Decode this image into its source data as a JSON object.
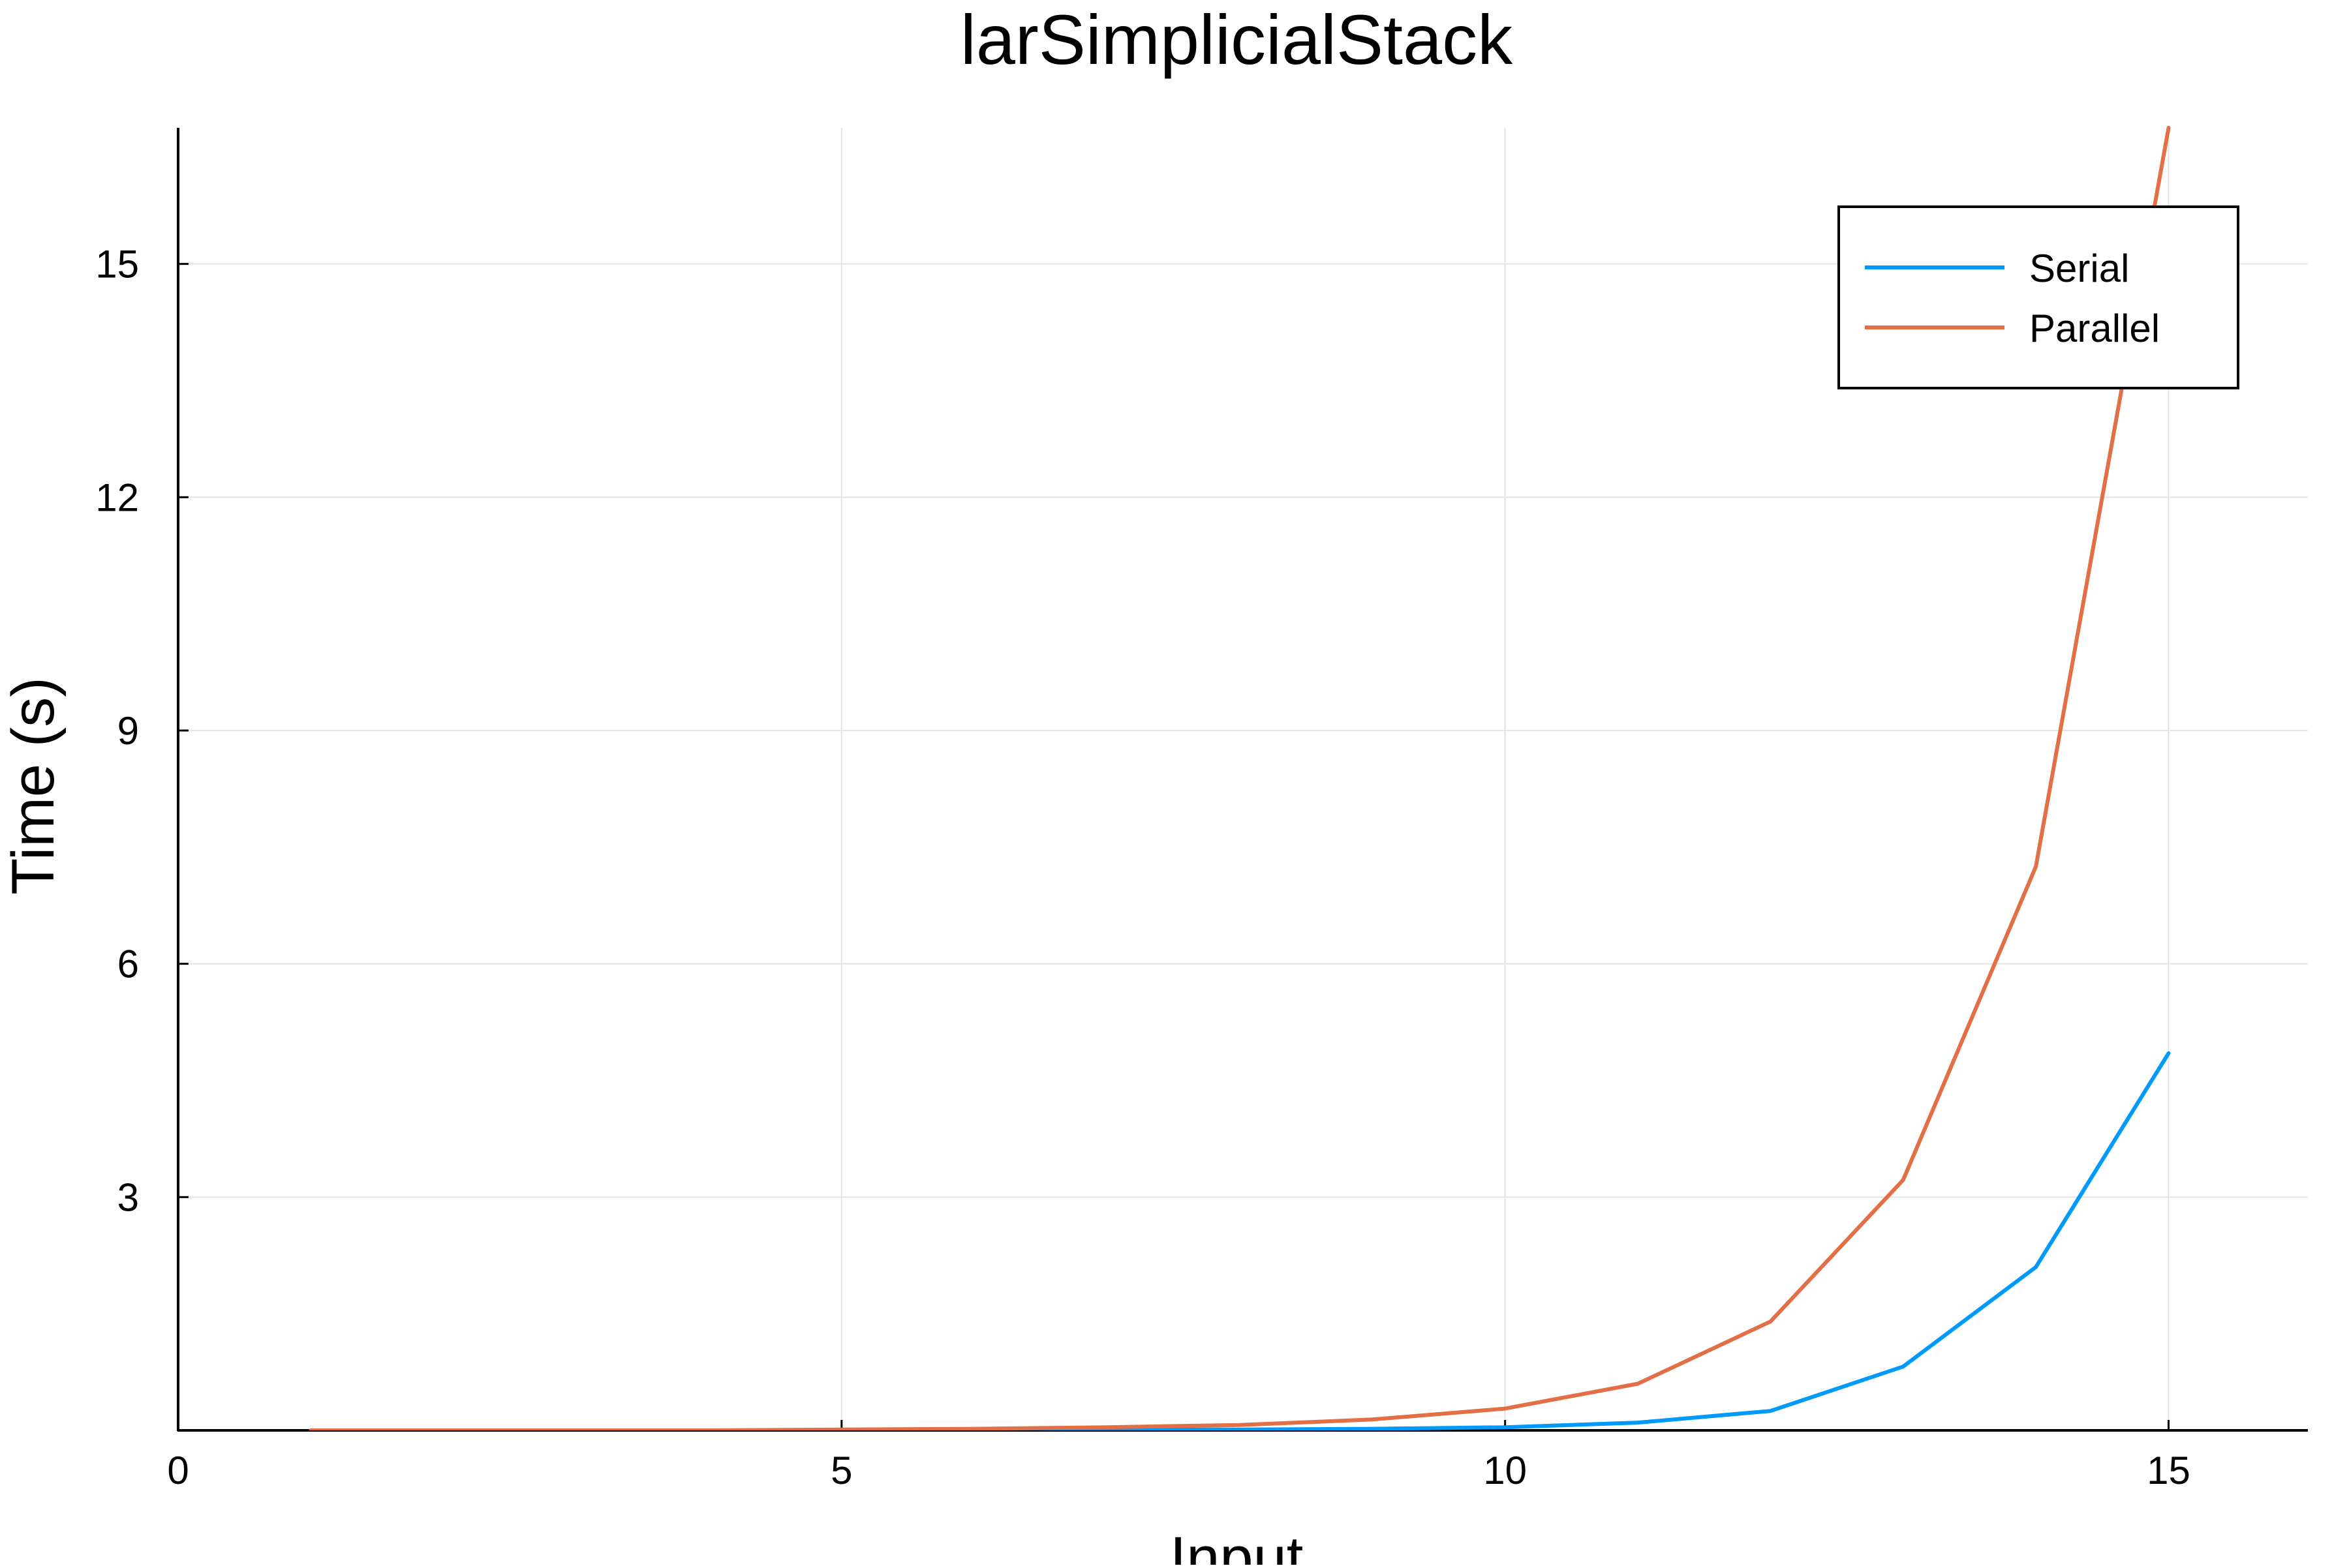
{
  "chart_data": {
    "type": "line",
    "title": "larSimplicialStack",
    "xlabel": "Input",
    "ylabel": "Time (s)",
    "xlim": [
      0,
      16.05
    ],
    "ylim": [
      0,
      16.75
    ],
    "x_ticks": [
      0,
      5,
      10,
      15
    ],
    "x_tick_labels": [
      "0",
      "5",
      "10",
      "15"
    ],
    "y_ticks": [
      3,
      6,
      9,
      12,
      15
    ],
    "y_tick_labels": [
      "3",
      "6",
      "9",
      "12",
      "15"
    ],
    "grid": true,
    "legend_position": "top-right",
    "x": [
      1,
      2,
      3,
      4,
      5,
      6,
      7,
      8,
      9,
      10,
      11,
      12,
      13,
      14,
      15
    ],
    "series": [
      {
        "name": "Serial",
        "color": "#009AFA",
        "values": [
          0.0,
          0.0,
          0.0,
          0.0,
          0.0,
          0.0,
          0.01,
          0.01,
          0.02,
          0.04,
          0.1,
          0.25,
          0.82,
          2.1,
          4.85
        ]
      },
      {
        "name": "Parallel",
        "color": "#E26F46",
        "values": [
          0.0,
          0.0,
          0.0,
          0.0,
          0.01,
          0.02,
          0.04,
          0.07,
          0.14,
          0.28,
          0.6,
          1.4,
          3.22,
          7.25,
          16.75
        ]
      }
    ]
  }
}
